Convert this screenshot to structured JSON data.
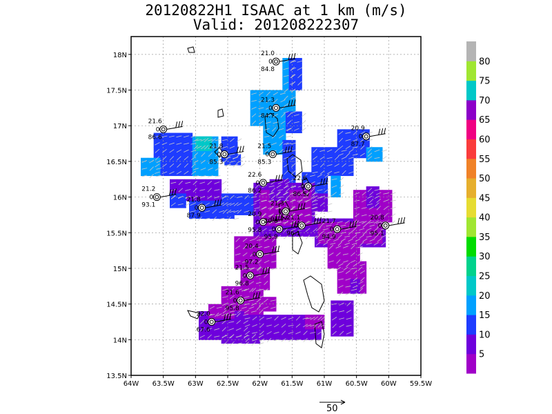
{
  "chart_data": {
    "type": "heatmap",
    "title": "20120822H1 ISAAC at 1 km (m/s)",
    "subtitle": "Valid: 201208222307",
    "xlim": [
      -64,
      -59.5
    ],
    "ylim": [
      13.5,
      18.25
    ],
    "x_ticks": [
      "64W",
      "63.5W",
      "63W",
      "62.5W",
      "62W",
      "61.5W",
      "61W",
      "60.5W",
      "60W",
      "59.5W"
    ],
    "y_ticks": [
      "13.5N",
      "14N",
      "14.5N",
      "15N",
      "15.5N",
      "16N",
      "16.5N",
      "17N",
      "17.5N",
      "18N"
    ],
    "grid": true,
    "colorbar": {
      "levels": [
        5,
        10,
        15,
        20,
        25,
        30,
        35,
        40,
        45,
        50,
        55,
        60,
        65,
        70,
        75,
        80
      ],
      "colors": [
        "#a000c8",
        "#6e00dc",
        "#1e3cff",
        "#00a0ff",
        "#00c8c8",
        "#00d28c",
        "#00dc00",
        "#a0e632",
        "#e6dc32",
        "#e6af2d",
        "#f08228",
        "#fa3c3c",
        "#f00082",
        "#8c00c8",
        "#00c8c8",
        "#a0e632",
        "#b4b4b4"
      ]
    },
    "vector_scale_label": "50",
    "sondes": [
      {
        "lon": -61.75,
        "lat": 17.9,
        "top": "21.0",
        "mid": "0",
        "bot": "84.8"
      },
      {
        "lon": -63.5,
        "lat": 16.95,
        "top": "21.6",
        "mid": "0",
        "bot": "86.6"
      },
      {
        "lon": -61.75,
        "lat": 17.25,
        "top": "21.3",
        "mid": "0",
        "bot": "84.7"
      },
      {
        "lon": -60.35,
        "lat": 16.85,
        "top": "20.9",
        "mid": "0",
        "bot": "87.7"
      },
      {
        "lon": -62.55,
        "lat": 16.6,
        "top": "21.8",
        "mid": "0",
        "bot": "85.3"
      },
      {
        "lon": -61.8,
        "lat": 16.6,
        "top": "21.5",
        "mid": "0",
        "bot": "85.3"
      },
      {
        "lon": -61.95,
        "lat": 16.2,
        "top": "22.6",
        "mid": "0",
        "bot": "86.2"
      },
      {
        "lon": -61.25,
        "lat": 16.15,
        "top": "22.6",
        "mid": "0",
        "bot": "86.5"
      },
      {
        "lon": -63.6,
        "lat": 16.0,
        "top": "21.2",
        "mid": "0",
        "bot": "93.1"
      },
      {
        "lon": -62.9,
        "lat": 15.85,
        "top": "21.8",
        "mid": "0",
        "bot": "87.9"
      },
      {
        "lon": -61.6,
        "lat": 15.8,
        "top": "21.3",
        "mid": "0",
        "bot": "91.7"
      },
      {
        "lon": -61.95,
        "lat": 15.65,
        "top": "20.9",
        "mid": "0",
        "bot": "95.8"
      },
      {
        "lon": -61.35,
        "lat": 15.6,
        "top": "21.1",
        "mid": "0",
        "bot": "96.1"
      },
      {
        "lon": -61.7,
        "lat": 15.55,
        "top": "20.8",
        "mid": "0",
        "bot": "95.9"
      },
      {
        "lon": -60.8,
        "lat": 15.55,
        "top": "21.7",
        "mid": "0",
        "bot": "94.9"
      },
      {
        "lon": -60.05,
        "lat": 15.6,
        "top": "20.8",
        "mid": "0",
        "bot": "95.1"
      },
      {
        "lon": -62.0,
        "lat": 15.2,
        "top": "20.4",
        "mid": "0",
        "bot": "97.2"
      },
      {
        "lon": -62.15,
        "lat": 14.9,
        "top": "21.5",
        "mid": "0",
        "bot": "96.8"
      },
      {
        "lon": -62.3,
        "lat": 14.55,
        "top": "21.6",
        "mid": "0",
        "bot": "95.8"
      },
      {
        "lon": -62.75,
        "lat": 14.25,
        "top": "22.0",
        "mid": "0",
        "bot": "67.6"
      }
    ]
  }
}
